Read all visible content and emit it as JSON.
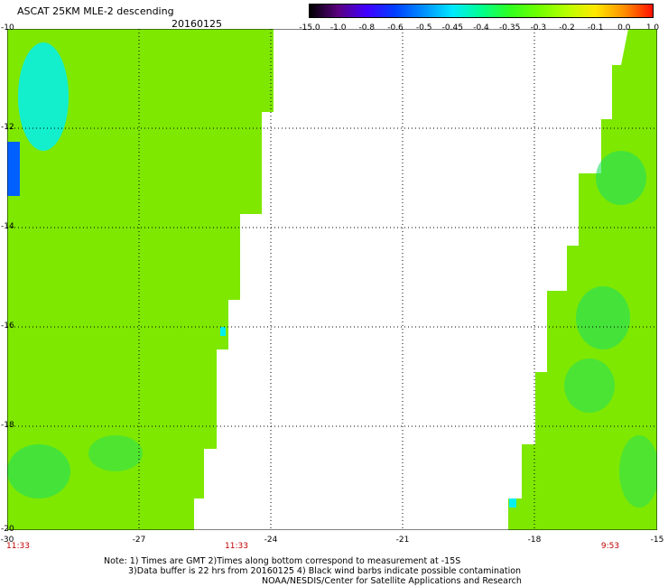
{
  "title": "ASCAT 25KM MLE-2 descending",
  "date": "20160125",
  "colorbar": {
    "labels": [
      "-15.0",
      "-1.0",
      "-0.8",
      "-0.6",
      "-0.5",
      "-0.45",
      "-0.4",
      "-0.35",
      "-0.3",
      "-0.2",
      "-0.1",
      "0.0",
      "1.0"
    ],
    "colors": [
      "#000000",
      "#5a0080",
      "#4000ff",
      "#0040ff",
      "#0090ff",
      "#00e8ff",
      "#00ff90",
      "#30ff20",
      "#70ff00",
      "#b8ff00",
      "#ffe800",
      "#ff9000",
      "#ff1000"
    ]
  },
  "map": {
    "lat_labels": [
      "-10",
      "-12",
      "-14",
      "-16",
      "-18",
      "-20"
    ],
    "lon_labels": [
      "-30",
      "-27",
      "-24",
      "-21",
      "-18",
      "-15"
    ],
    "time_labels": [
      "11:33",
      "11:33",
      "9:53"
    ],
    "swath_color": "#7ee800",
    "high_color": "#20e060",
    "low_color": "#00f0f0"
  },
  "notes": [
    "Note: 1) Times are GMT 2)Times along bottom correspond to measurement at -15S",
    "3)Data buffer is 22 hrs from 20160125 4) Black wind barbs indicate possible contamination",
    "NOAA/NESDIS/Center for Satellite Applications and Research"
  ]
}
